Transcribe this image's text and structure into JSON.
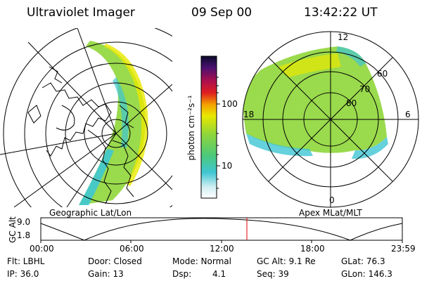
{
  "header": {
    "instrument": "Ultraviolet Imager",
    "date": "09 Sep 00",
    "time": "13:42:22 UT"
  },
  "colorbar": {
    "unit": "photon cm⁻²s⁻¹",
    "ticks": [
      "100",
      "10"
    ]
  },
  "geo_panel": {
    "label": "Geographic Lat/Lon"
  },
  "polar_panel": {
    "label": "Apex MLat/MLT",
    "mlt_labels": {
      "top": "12",
      "left": "18",
      "right": "6",
      "bottom": "0"
    },
    "lat_labels": [
      "60",
      "70",
      "80"
    ]
  },
  "altitude_strip": {
    "axis_label": "GC Alt",
    "y_ticks": [
      "9.0",
      "1.8"
    ],
    "time_ticks": [
      "00:00",
      "06:00",
      "12:00",
      "18:00",
      "23:59"
    ],
    "current_time_fraction": 0.571
  },
  "status": {
    "flt": "Flt: LBHL",
    "door": "Door: Closed",
    "mode": "Mode: Normal",
    "gc_alt": "GC Alt: 9.1 Re",
    "glat": "GLat: 76.3",
    "ip": "IP: 36.0",
    "gain": "Gain: 13",
    "dsp_label": "Dsp:",
    "dsp_value": "4.1",
    "seq": "Seq: 39",
    "glon": "GLon: 146.3"
  },
  "colors": {
    "marker": "#e00000",
    "aurora_green": "#7fd13a",
    "aurora_cyan": "#4fc9d6",
    "aurora_yellow": "#e6e000"
  }
}
